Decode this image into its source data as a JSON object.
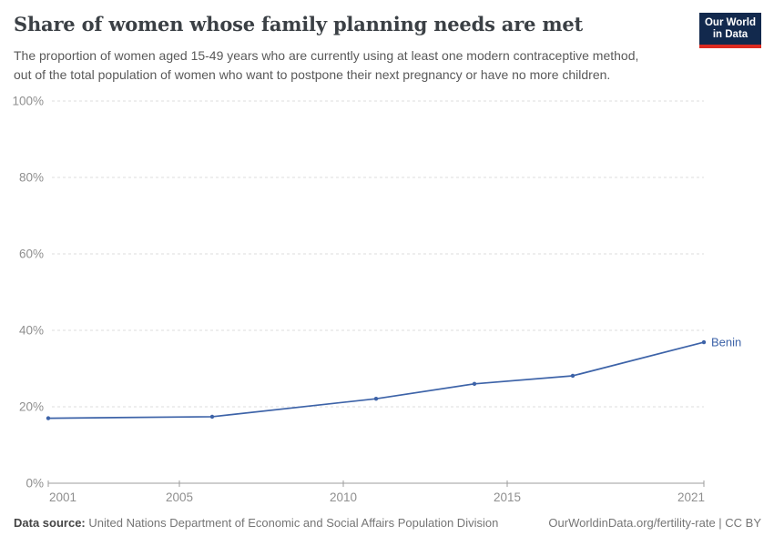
{
  "header": {
    "title": "Share of women whose family planning needs are met",
    "subtitle_line1": "The proportion of women aged 15-49 years who are currently using at least one modern contraceptive method,",
    "subtitle_line2": "out of the total population of women who want to postpone their next pregnancy or have no more children.",
    "logo_line1": "Our World",
    "logo_line2": "in Data"
  },
  "chart_data": {
    "type": "line",
    "title": "Share of women whose family planning needs are met",
    "x": [
      2001,
      2006,
      2011,
      2014,
      2017,
      2021
    ],
    "series": [
      {
        "name": "Benin",
        "values": [
          17,
          17.4,
          22.1,
          26,
          28.1,
          36.9
        ],
        "color": "#3d63a8"
      }
    ],
    "xlim": [
      2001,
      2021
    ],
    "ylim": [
      0,
      100
    ],
    "xticks": [
      2001,
      2005,
      2010,
      2015,
      2021
    ],
    "yticks": [
      0,
      20,
      40,
      60,
      80,
      100
    ],
    "ytick_suffix": "%",
    "xlabel": "",
    "ylabel": "",
    "grid": "horizontal-dashed",
    "legend_position": "line-end-label"
  },
  "footer": {
    "datasource_label": "Data source:",
    "datasource_text": "United Nations Department of Economic and Social Affairs Population Division",
    "link_text": "OurWorldinData.org/fertility-rate | CC BY"
  },
  "colors": {
    "accent_line": "#3d63a8",
    "logo_bg": "#12294d",
    "logo_red": "#dc2a20",
    "grid": "#dcdcdc",
    "axis": "#9c9c9c",
    "tick_label": "#8f8f8f"
  }
}
